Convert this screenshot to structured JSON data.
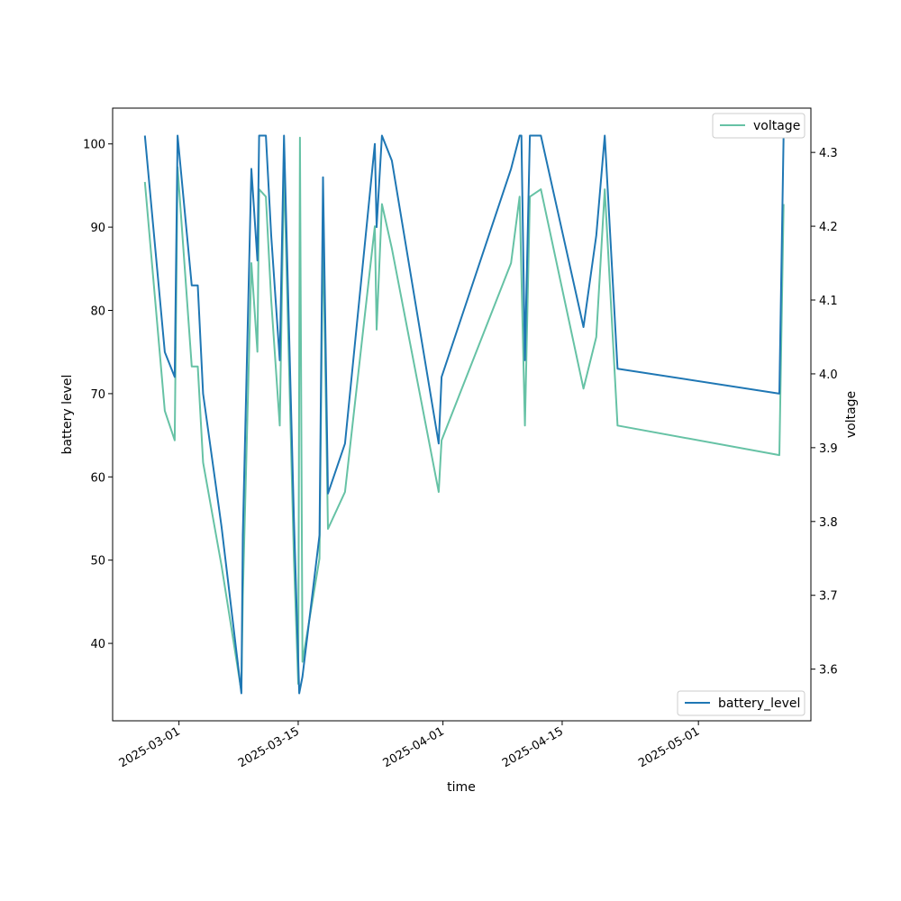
{
  "chart_data": {
    "type": "line",
    "title": "",
    "xlabel": "time",
    "ylabel_left": "battery level",
    "ylabel_right": "voltage",
    "x_ticks": [
      "2025-03-01",
      "2025-03-15",
      "2025-04-01",
      "2025-04-15",
      "2025-05-01"
    ],
    "left_ticks": [
      40,
      50,
      60,
      70,
      80,
      90,
      100
    ],
    "right_ticks": [
      3.6,
      3.7,
      3.8,
      3.9,
      4.0,
      4.1,
      4.2,
      4.3
    ],
    "xlim": [
      "2025-02-21T05:00",
      "2025-05-14T05:00"
    ],
    "ylim_left": [
      30.7,
      104.3
    ],
    "ylim_right": [
      3.53,
      4.36
    ],
    "grid": false,
    "series": [
      {
        "name": "battery_level",
        "axis": "left",
        "color": "#1f77b4",
        "legend_position": "lower right",
        "points": [
          [
            "2025-02-25T00:00",
            101
          ],
          [
            "2025-02-27T08:00",
            75
          ],
          [
            "2025-02-28T12:00",
            72
          ],
          [
            "2025-02-28T20:00",
            101
          ],
          [
            "2025-03-02T12:00",
            83
          ],
          [
            "2025-03-03T05:00",
            83
          ],
          [
            "2025-03-03T20:00",
            70
          ],
          [
            "2025-03-06T00:00",
            54
          ],
          [
            "2025-03-08T08:00",
            34
          ],
          [
            "2025-03-08T12:00",
            53
          ],
          [
            "2025-03-09T12:00",
            97
          ],
          [
            "2025-03-10T05:00",
            86
          ],
          [
            "2025-03-10T10:00",
            101
          ],
          [
            "2025-03-11T05:00",
            101
          ],
          [
            "2025-03-11T20:00",
            89
          ],
          [
            "2025-03-12T20:00",
            74
          ],
          [
            "2025-03-13T08:00",
            101
          ],
          [
            "2025-03-14T12:00",
            55
          ],
          [
            "2025-03-15T03:00",
            34
          ],
          [
            "2025-03-15T12:00",
            36
          ],
          [
            "2025-03-17T12:00",
            53
          ],
          [
            "2025-03-17T22:00",
            96
          ],
          [
            "2025-03-18T12:00",
            58
          ],
          [
            "2025-03-20T12:00",
            64
          ],
          [
            "2025-03-24T00:00",
            100
          ],
          [
            "2025-03-24T05:00",
            90
          ],
          [
            "2025-03-24T20:00",
            101
          ],
          [
            "2025-03-26T00:00",
            98
          ],
          [
            "2025-03-31T12:00",
            64
          ],
          [
            "2025-03-31T20:00",
            72
          ],
          [
            "2025-04-09T00:00",
            97
          ],
          [
            "2025-04-10T00:00",
            101
          ],
          [
            "2025-04-10T05:00",
            101
          ],
          [
            "2025-04-10T15:00",
            74
          ],
          [
            "2025-04-11T05:00",
            101
          ],
          [
            "2025-04-12T12:00",
            101
          ],
          [
            "2025-04-17T12:00",
            78
          ],
          [
            "2025-04-19T00:00",
            89
          ],
          [
            "2025-04-20T00:00",
            101
          ],
          [
            "2025-04-21T12:00",
            73
          ],
          [
            "2025-05-10T12:00",
            70
          ],
          [
            "2025-05-11T00:00",
            101
          ]
        ]
      },
      {
        "name": "voltage",
        "axis": "right",
        "color": "#66c2a5",
        "legend_position": "upper right",
        "points": [
          [
            "2025-02-25T00:00",
            4.26
          ],
          [
            "2025-02-27T08:00",
            3.95
          ],
          [
            "2025-02-28T12:00",
            3.91
          ],
          [
            "2025-02-28T20:00",
            4.28
          ],
          [
            "2025-03-02T12:00",
            4.01
          ],
          [
            "2025-03-03T05:00",
            4.01
          ],
          [
            "2025-03-03T20:00",
            3.88
          ],
          [
            "2025-03-06T00:00",
            3.74
          ],
          [
            "2025-03-08T08:00",
            3.57
          ],
          [
            "2025-03-08T12:00",
            3.7
          ],
          [
            "2025-03-09T12:00",
            4.15
          ],
          [
            "2025-03-10T05:00",
            4.03
          ],
          [
            "2025-03-10T10:00",
            4.25
          ],
          [
            "2025-03-11T05:00",
            4.24
          ],
          [
            "2025-03-11T20:00",
            4.1
          ],
          [
            "2025-03-12T20:00",
            3.93
          ],
          [
            "2025-03-13T08:00",
            4.28
          ],
          [
            "2025-03-14T12:00",
            3.75
          ],
          [
            "2025-03-15T00:00",
            3.58
          ],
          [
            "2025-03-15T05:00",
            4.32
          ],
          [
            "2025-03-15T12:00",
            3.61
          ],
          [
            "2025-03-17T12:00",
            3.75
          ],
          [
            "2025-03-17T22:00",
            4.2
          ],
          [
            "2025-03-18T12:00",
            3.79
          ],
          [
            "2025-03-20T12:00",
            3.84
          ],
          [
            "2025-03-24T00:00",
            4.2
          ],
          [
            "2025-03-24T05:00",
            4.06
          ],
          [
            "2025-03-24T20:00",
            4.23
          ],
          [
            "2025-03-26T00:00",
            4.17
          ],
          [
            "2025-03-31T12:00",
            3.84
          ],
          [
            "2025-03-31T20:00",
            3.91
          ],
          [
            "2025-04-09T00:00",
            4.15
          ],
          [
            "2025-04-10T00:00",
            4.24
          ],
          [
            "2025-04-10T15:00",
            3.93
          ],
          [
            "2025-04-11T05:00",
            4.24
          ],
          [
            "2025-04-12T12:00",
            4.25
          ],
          [
            "2025-04-17T12:00",
            3.98
          ],
          [
            "2025-04-19T00:00",
            4.05
          ],
          [
            "2025-04-20T00:00",
            4.25
          ],
          [
            "2025-04-21T12:00",
            3.93
          ],
          [
            "2025-05-10T12:00",
            3.89
          ],
          [
            "2025-05-11T00:00",
            4.23
          ]
        ]
      }
    ]
  }
}
